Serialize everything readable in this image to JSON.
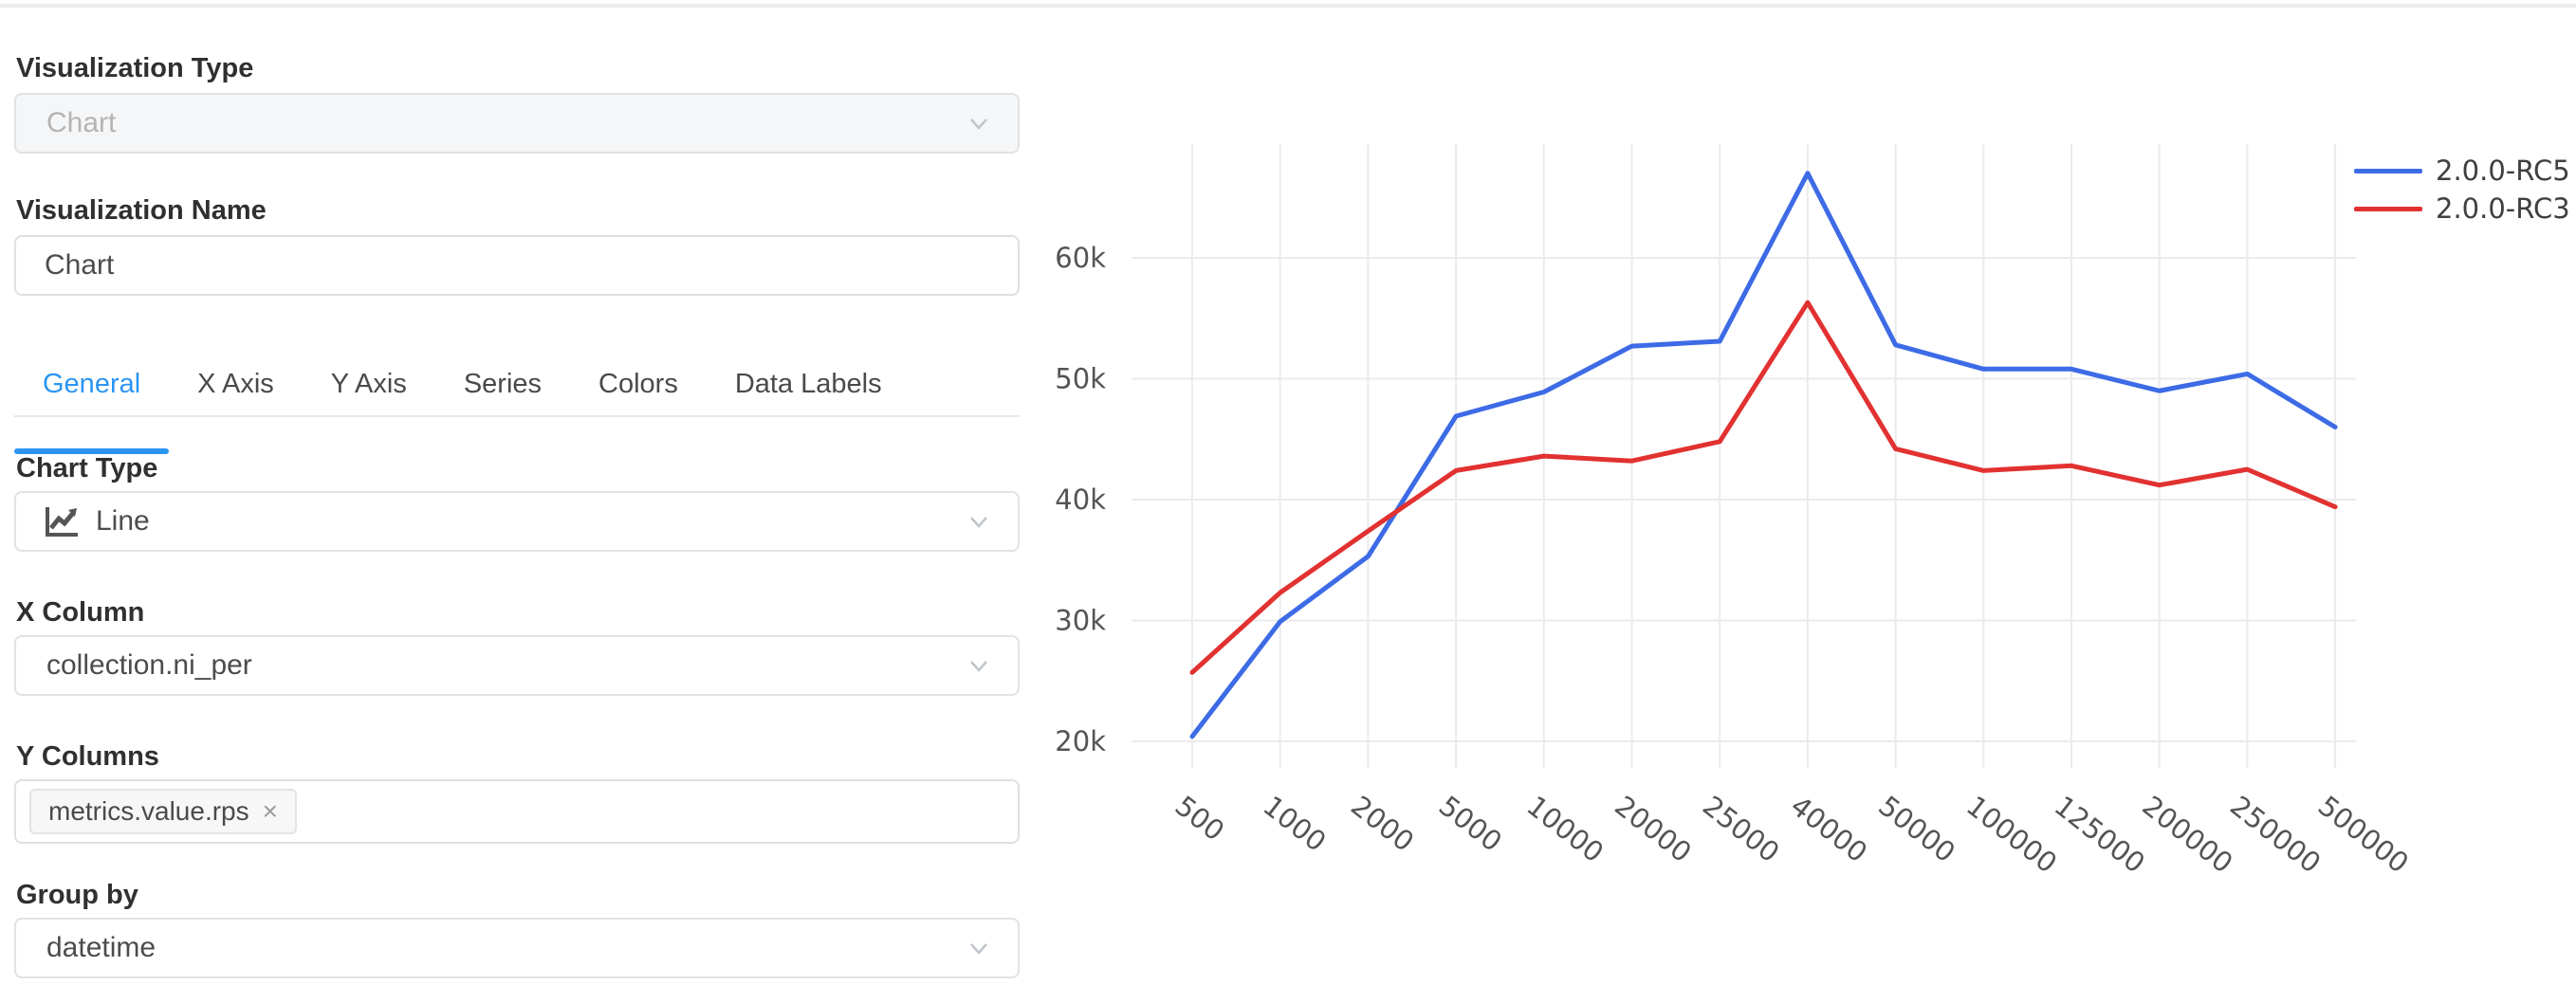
{
  "panel": {
    "visualization_type": {
      "label": "Visualization Type",
      "value": "Chart"
    },
    "visualization_name": {
      "label": "Visualization Name",
      "value": "Chart"
    },
    "tabs": [
      {
        "label": "General",
        "active": true
      },
      {
        "label": "X Axis",
        "active": false
      },
      {
        "label": "Y Axis",
        "active": false
      },
      {
        "label": "Series",
        "active": false
      },
      {
        "label": "Colors",
        "active": false
      },
      {
        "label": "Data Labels",
        "active": false
      }
    ],
    "chart_type": {
      "label": "Chart Type",
      "value": "Line",
      "icon": "line-chart-icon"
    },
    "x_column": {
      "label": "X Column",
      "value": "collection.ni_per"
    },
    "y_columns": {
      "label": "Y Columns",
      "tags": [
        {
          "text": "metrics.value.rps",
          "remove": "×"
        }
      ]
    },
    "group_by": {
      "label": "Group by",
      "value": "datetime"
    }
  },
  "chart_data": {
    "type": "line",
    "categories": [
      "500",
      "1000",
      "2000",
      "5000",
      "10000",
      "20000",
      "25000",
      "40000",
      "50000",
      "100000",
      "125000",
      "200000",
      "250000",
      "500000"
    ],
    "series": [
      {
        "name": "2.0.0-RC5",
        "color": "#3d6be6",
        "values": [
          20400,
          29900,
          35300,
          46900,
          48900,
          52700,
          53100,
          67000,
          52800,
          50800,
          50800,
          49000,
          50400,
          46000
        ]
      },
      {
        "name": "2.0.0-RC3",
        "color": "#e13231",
        "values": [
          25700,
          32300,
          37400,
          42400,
          43600,
          43200,
          44800,
          56300,
          44200,
          42400,
          42800,
          41200,
          42500,
          39400
        ]
      }
    ],
    "yticks": [
      20000,
      30000,
      40000,
      50000,
      60000
    ],
    "ytick_labels": [
      "20k",
      "30k",
      "40k",
      "50k",
      "60k"
    ],
    "ylim": [
      16600,
      69400
    ],
    "grid": true,
    "legend_position": "top-right",
    "title": "",
    "xlabel": "",
    "ylabel": ""
  },
  "colors": {
    "accent": "#2b95f2",
    "grid": "#ebebeb",
    "axis_text": "#545454",
    "series_blue": "#3d6be6",
    "series_red": "#e13231"
  }
}
